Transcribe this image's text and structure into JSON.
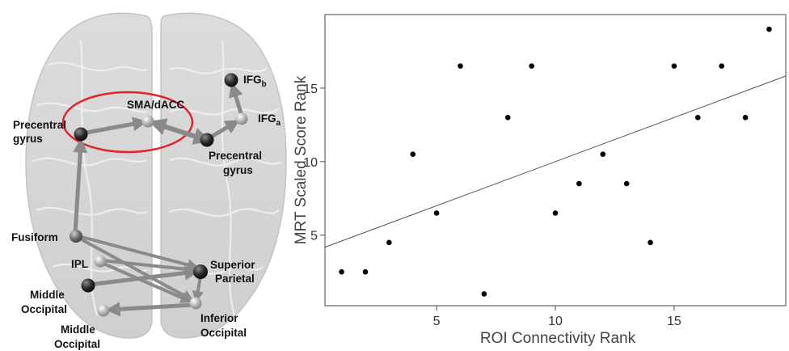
{
  "brain_network": {
    "nodes": [
      {
        "id": "precentral-left",
        "label": "Precentral",
        "label2": "gyrus",
        "shade": "dark"
      },
      {
        "id": "sma",
        "label": "SMA/dACC",
        "shade": "light"
      },
      {
        "id": "precentral-right",
        "label": "Precentral",
        "label2": "gyrus",
        "shade": "dark"
      },
      {
        "id": "ifg-a",
        "label": "IFG",
        "sub": "a",
        "shade": "light"
      },
      {
        "id": "ifg-b",
        "label": "IFG",
        "sub": "b",
        "shade": "dark"
      },
      {
        "id": "fusiform",
        "label": "Fusiform",
        "shade": "medium"
      },
      {
        "id": "ipl",
        "label": "IPL",
        "shade": "light"
      },
      {
        "id": "superior-parietal",
        "label": "Superior",
        "label2": "Parietal",
        "shade": "dark"
      },
      {
        "id": "middle-occipital-1",
        "label": "Middle",
        "label2": "Occipital",
        "shade": "dark"
      },
      {
        "id": "middle-occipital-2",
        "label": "Middle",
        "label2": "Occipital",
        "shade": "light"
      },
      {
        "id": "inferior-occipital",
        "label": "Inferior",
        "label2": "Occipital",
        "shade": "light"
      }
    ],
    "colors": {
      "edge": "#8a8a8a",
      "highlight_ellipse": "#e0262b",
      "brain": "#d9d9d9"
    }
  },
  "chart_data": {
    "type": "scatter",
    "xlabel": "ROI Connectivity Rank",
    "ylabel": "MRT Scaled Score Rank",
    "xlim": [
      0.3,
      19.7
    ],
    "ylim": [
      0.2,
      20
    ],
    "xticks": [
      5,
      10,
      15
    ],
    "yticks": [
      5,
      10,
      15
    ],
    "grid": false,
    "points": [
      {
        "x": 1,
        "y": 2.5
      },
      {
        "x": 2,
        "y": 2.5
      },
      {
        "x": 3,
        "y": 4.5
      },
      {
        "x": 4,
        "y": 10.5
      },
      {
        "x": 5,
        "y": 6.5
      },
      {
        "x": 6,
        "y": 16.5
      },
      {
        "x": 7,
        "y": 1
      },
      {
        "x": 8,
        "y": 13
      },
      {
        "x": 9,
        "y": 16.5
      },
      {
        "x": 10,
        "y": 6.5
      },
      {
        "x": 11,
        "y": 8.5
      },
      {
        "x": 12,
        "y": 10.5
      },
      {
        "x": 13,
        "y": 8.5
      },
      {
        "x": 14,
        "y": 4.5
      },
      {
        "x": 15,
        "y": 16.5
      },
      {
        "x": 16,
        "y": 13
      },
      {
        "x": 17,
        "y": 16.5
      },
      {
        "x": 18,
        "y": 13
      },
      {
        "x": 19,
        "y": 19
      }
    ],
    "fit_line": {
      "slope": 0.6,
      "intercept": 4
    }
  }
}
